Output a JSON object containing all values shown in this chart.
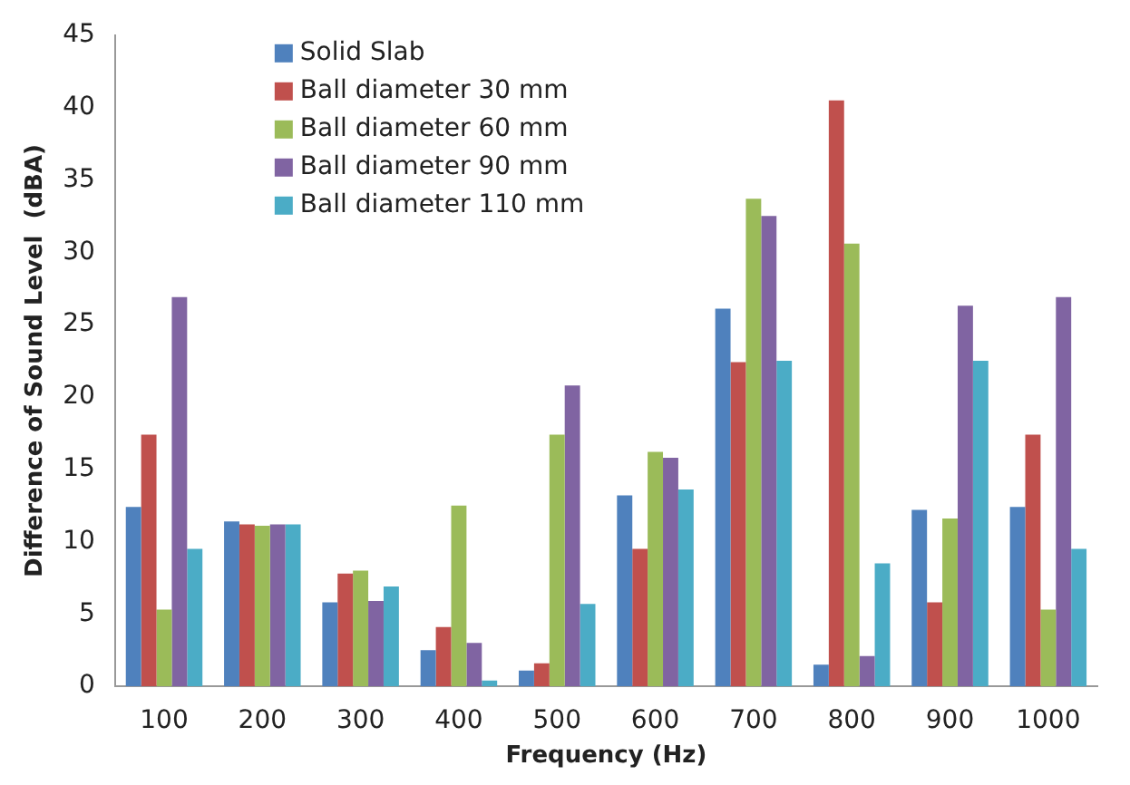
{
  "chart_data": {
    "type": "bar",
    "xlabel": "Frequency (Hz)",
    "ylabel": "Difference of Sound Level  (dBA)",
    "categories": [
      "100",
      "200",
      "300",
      "400",
      "500",
      "600",
      "700",
      "800",
      "900",
      "1000"
    ],
    "series": [
      {
        "name": "Solid Slab",
        "color": "#4f81bd",
        "values": [
          12.4,
          11.4,
          5.8,
          2.5,
          1.1,
          13.2,
          26.1,
          1.5,
          12.2,
          12.4
        ]
      },
      {
        "name": "Ball diameter 30 mm",
        "color": "#c0504d",
        "values": [
          17.4,
          11.2,
          7.8,
          4.1,
          1.6,
          9.5,
          22.4,
          40.5,
          5.8,
          17.4
        ]
      },
      {
        "name": "Ball diameter 60 mm",
        "color": "#9bbb59",
        "values": [
          5.3,
          11.1,
          8.0,
          12.5,
          17.4,
          16.2,
          33.7,
          30.6,
          11.6,
          5.3
        ]
      },
      {
        "name": "Ball diameter 90 mm",
        "color": "#8064a2",
        "values": [
          26.9,
          11.2,
          5.9,
          3.0,
          20.8,
          15.8,
          32.5,
          2.1,
          26.3,
          26.9
        ]
      },
      {
        "name": "Ball diameter 110 mm",
        "color": "#4bacc6",
        "values": [
          9.5,
          11.2,
          6.9,
          0.4,
          5.7,
          13.6,
          22.5,
          8.5,
          22.5,
          9.5
        ]
      }
    ],
    "ylim": [
      0,
      45
    ],
    "yticks": [
      0,
      5,
      10,
      15,
      20,
      25,
      30,
      35,
      40,
      45
    ],
    "grid": false,
    "legend": "top left"
  }
}
